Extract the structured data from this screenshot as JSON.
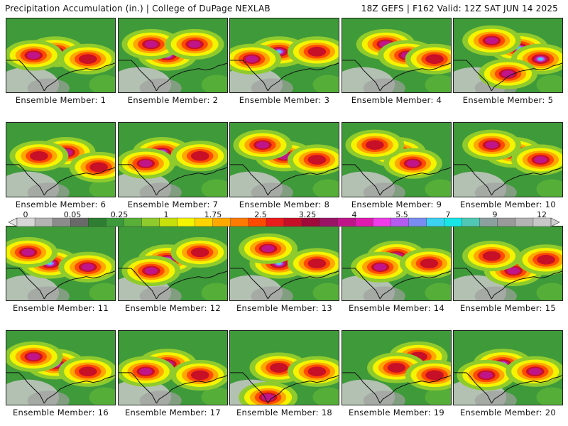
{
  "header": {
    "left_title": "Precipitation Accumulation (in.) | College of DuPage NEXLAB",
    "right_title": "18Z GEFS | F162 Valid: 12Z SAT JUN 14 2025"
  },
  "colorbar": {
    "tick_labels": [
      "0",
      "0.05",
      "0.25",
      "1",
      "1.75",
      "2.5",
      "3.25",
      "4",
      "5.5",
      "7",
      "9",
      "12"
    ],
    "colors": [
      "#d6d6d6",
      "#b4b4b4",
      "#8c8c8c",
      "#6a6a6a",
      "#2e7d32",
      "#3c9a3c",
      "#58b038",
      "#8fcb2c",
      "#c8e00a",
      "#f4f400",
      "#ffd400",
      "#ffa800",
      "#ff7a00",
      "#ff4a00",
      "#ea1c1c",
      "#c80f28",
      "#a00a3a",
      "#9b1466",
      "#c0158a",
      "#e01aaf",
      "#f03ce8",
      "#b45af0",
      "#7a8cf2",
      "#3cd2f2",
      "#19e6e6",
      "#50c8b4",
      "#8ca0a0",
      "#9a9a9a",
      "#b4b4b4",
      "#c8c8c8"
    ]
  },
  "members": [
    {
      "label": "Ensemble Member: 1",
      "c": [
        [
          0.45,
          0.45,
          2
        ],
        [
          0.25,
          0.5,
          1
        ],
        [
          0.75,
          0.55,
          0
        ]
      ]
    },
    {
      "label": "Ensemble Member: 2",
      "c": [
        [
          0.45,
          0.5,
          2
        ],
        [
          0.3,
          0.35,
          1
        ],
        [
          0.7,
          0.35,
          1
        ]
      ]
    },
    {
      "label": "Ensemble Member: 3",
      "c": [
        [
          0.45,
          0.45,
          2
        ],
        [
          0.2,
          0.55,
          1
        ],
        [
          0.8,
          0.45,
          0
        ]
      ]
    },
    {
      "label": "Ensemble Member: 4",
      "c": [
        [
          0.4,
          0.35,
          1
        ],
        [
          0.6,
          0.5,
          1
        ],
        [
          0.85,
          0.55,
          0
        ]
      ]
    },
    {
      "label": "Ensemble Member: 5",
      "c": [
        [
          0.6,
          0.4,
          2
        ],
        [
          0.8,
          0.55,
          2
        ],
        [
          0.35,
          0.3,
          1
        ],
        [
          0.5,
          0.75,
          1
        ]
      ]
    },
    {
      "label": "Ensemble Member: 6",
      "c": [
        [
          0.55,
          0.4,
          1
        ],
        [
          0.3,
          0.45,
          0
        ],
        [
          0.85,
          0.6,
          0
        ]
      ]
    },
    {
      "label": "Ensemble Member: 7",
      "c": [
        [
          0.4,
          0.4,
          2
        ],
        [
          0.25,
          0.55,
          1
        ],
        [
          0.75,
          0.45,
          0
        ]
      ]
    },
    {
      "label": "Ensemble Member: 8",
      "c": [
        [
          0.5,
          0.45,
          1
        ],
        [
          0.3,
          0.3,
          1
        ],
        [
          0.8,
          0.5,
          0
        ]
      ]
    },
    {
      "label": "Ensemble Member: 9",
      "c": [
        [
          0.5,
          0.4,
          1
        ],
        [
          0.65,
          0.55,
          1
        ],
        [
          0.3,
          0.3,
          0
        ]
      ]
    },
    {
      "label": "Ensemble Member: 10",
      "c": [
        [
          0.55,
          0.4,
          2
        ],
        [
          0.35,
          0.3,
          1
        ],
        [
          0.8,
          0.5,
          1
        ]
      ]
    },
    {
      "label": "Ensemble Member: 11",
      "c": [
        [
          0.4,
          0.5,
          2
        ],
        [
          0.2,
          0.35,
          1
        ],
        [
          0.75,
          0.55,
          1
        ]
      ]
    },
    {
      "label": "Ensemble Member: 12",
      "c": [
        [
          0.45,
          0.45,
          2
        ],
        [
          0.3,
          0.6,
          1
        ],
        [
          0.75,
          0.35,
          0
        ]
      ]
    },
    {
      "label": "Ensemble Member: 13",
      "c": [
        [
          0.45,
          0.5,
          2
        ],
        [
          0.35,
          0.3,
          1
        ],
        [
          0.8,
          0.5,
          0
        ]
      ]
    },
    {
      "label": "Ensemble Member: 14",
      "c": [
        [
          0.5,
          0.4,
          1
        ],
        [
          0.35,
          0.55,
          1
        ],
        [
          0.8,
          0.5,
          0
        ]
      ]
    },
    {
      "label": "Ensemble Member: 15",
      "c": [
        [
          0.55,
          0.6,
          1
        ],
        [
          0.35,
          0.4,
          0
        ],
        [
          0.85,
          0.45,
          0
        ]
      ]
    },
    {
      "label": "Ensemble Member: 16",
      "c": [
        [
          0.45,
          0.45,
          2
        ],
        [
          0.25,
          0.35,
          1
        ],
        [
          0.75,
          0.55,
          0
        ]
      ]
    },
    {
      "label": "Ensemble Member: 17",
      "c": [
        [
          0.45,
          0.45,
          1
        ],
        [
          0.25,
          0.55,
          1
        ],
        [
          0.75,
          0.6,
          0
        ]
      ]
    },
    {
      "label": "Ensemble Member: 18",
      "c": [
        [
          0.45,
          0.5,
          0
        ],
        [
          0.35,
          0.9,
          1
        ],
        [
          0.8,
          0.55,
          0
        ]
      ]
    },
    {
      "label": "Ensemble Member: 19",
      "c": [
        [
          0.7,
          0.35,
          0
        ],
        [
          0.5,
          0.5,
          0
        ],
        [
          0.85,
          0.6,
          0
        ]
      ]
    },
    {
      "label": "Ensemble Member: 20",
      "c": [
        [
          0.45,
          0.45,
          2
        ],
        [
          0.3,
          0.6,
          1
        ],
        [
          0.75,
          0.55,
          1
        ]
      ]
    }
  ]
}
